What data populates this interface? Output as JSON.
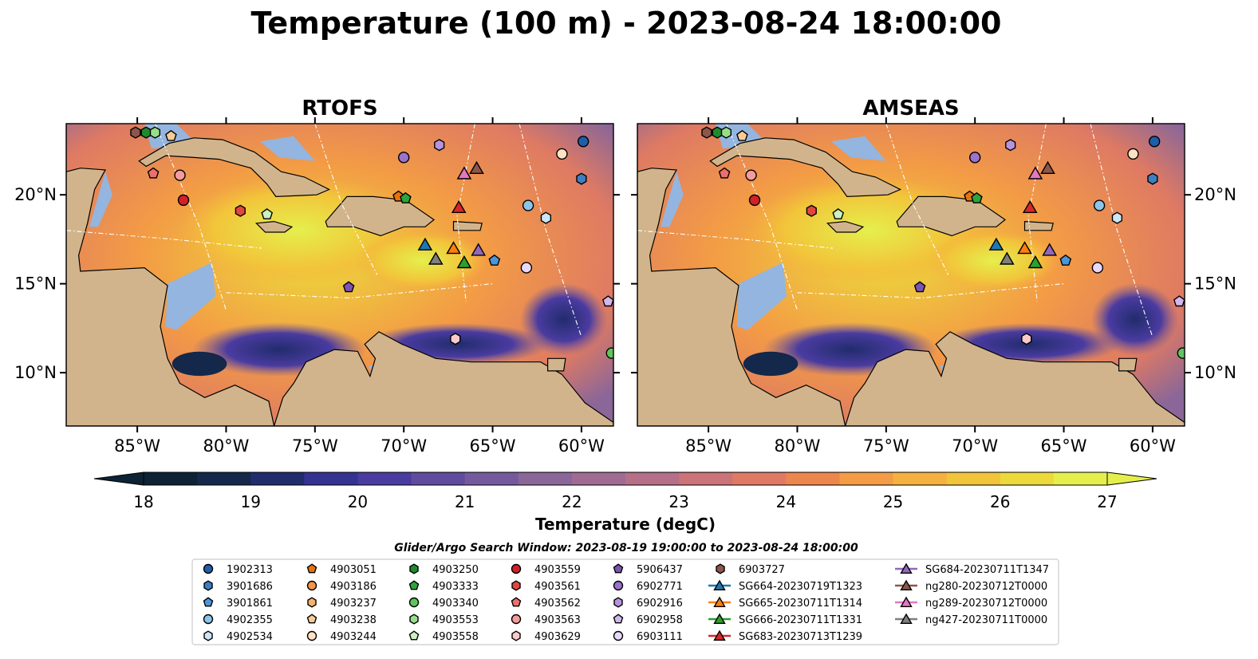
{
  "figure_title": "Temperature (100 m) - 2023-08-24 18:00:00",
  "search_window": "Glider/Argo Search Window: 2023-08-19 19:00:00 to 2023-08-24 18:00:00",
  "colors": {
    "land": "#d2b48c",
    "shallow_water": "#94b5df",
    "cmap": [
      "#0d2234",
      "#13284a",
      "#212c6c",
      "#343392",
      "#4a3ba0",
      "#5f4c9e",
      "#745a9d",
      "#8a6699",
      "#a06b93",
      "#b66f88",
      "#cc7279",
      "#de7a63",
      "#ec864d",
      "#f39c45",
      "#f6b03f",
      "#f2c43a",
      "#ecd93b",
      "#e5ef4c"
    ]
  },
  "legend_items": [
    {
      "label": "1902313",
      "marker": "circle",
      "color": "#1f5fa8"
    },
    {
      "label": "3901686",
      "marker": "hexagon",
      "color": "#3d7fc2"
    },
    {
      "label": "3901861",
      "marker": "pentagon",
      "color": "#4b96d8"
    },
    {
      "label": "4902355",
      "marker": "circle",
      "color": "#8cc4ea"
    },
    {
      "label": "4902534",
      "marker": "hexagon",
      "color": "#cde6f7"
    },
    {
      "label": "4903051",
      "marker": "pentagon",
      "color": "#e8730c"
    },
    {
      "label": "4903186",
      "marker": "circle",
      "color": "#f39744"
    },
    {
      "label": "4903237",
      "marker": "hexagon",
      "color": "#f6b26b"
    },
    {
      "label": "4903238",
      "marker": "pentagon",
      "color": "#f9cb96"
    },
    {
      "label": "4903244",
      "marker": "circle",
      "color": "#fde2c4"
    },
    {
      "label": "4903250",
      "marker": "hexagon",
      "color": "#1e8a2e"
    },
    {
      "label": "4903333",
      "marker": "pentagon",
      "color": "#2ea43c"
    },
    {
      "label": "4903340",
      "marker": "circle",
      "color": "#5ec65e"
    },
    {
      "label": "4903553",
      "marker": "hexagon",
      "color": "#97de8b"
    },
    {
      "label": "4903558",
      "marker": "pentagon",
      "color": "#cbf0c1"
    },
    {
      "label": "4903559",
      "marker": "circle",
      "color": "#d0202a"
    },
    {
      "label": "4903561",
      "marker": "hexagon",
      "color": "#e0473f"
    },
    {
      "label": "4903562",
      "marker": "pentagon",
      "color": "#ec6f6b"
    },
    {
      "label": "4903563",
      "marker": "circle",
      "color": "#f59b9b"
    },
    {
      "label": "4903629",
      "marker": "hexagon",
      "color": "#fbcaca"
    },
    {
      "label": "5906437",
      "marker": "pentagon",
      "color": "#7b53b3"
    },
    {
      "label": "6902771",
      "marker": "circle",
      "color": "#9b72cc"
    },
    {
      "label": "6902916",
      "marker": "hexagon",
      "color": "#b693de"
    },
    {
      "label": "6902958",
      "marker": "pentagon",
      "color": "#d2b6ee"
    },
    {
      "label": "6903111",
      "marker": "circle",
      "color": "#e8d8fa"
    },
    {
      "label": "6903727",
      "marker": "hexagon",
      "color": "#8c564b"
    },
    {
      "label": "SG664-20230719T1323",
      "marker": "triangle",
      "color": "#1f77b4"
    },
    {
      "label": "SG665-20230711T1314",
      "marker": "triangle",
      "color": "#ff7f0e"
    },
    {
      "label": "SG666-20230711T1331",
      "marker": "triangle",
      "color": "#2ca02c"
    },
    {
      "label": "SG683-20230713T1239",
      "marker": "triangle",
      "color": "#d62728"
    },
    {
      "label": "SG684-20230711T1347",
      "marker": "triangle",
      "color": "#9467bd"
    },
    {
      "label": "ng280-20230712T0000",
      "marker": "triangle",
      "color": "#8c564b"
    },
    {
      "label": "ng289-20230712T0000",
      "marker": "triangle",
      "color": "#e377c2"
    },
    {
      "label": "ng427-20230711T0000",
      "marker": "triangle",
      "color": "#7f7f7f"
    }
  ],
  "chart_data": {
    "type": "heatmap",
    "variable": "Temperature (degC)",
    "depth": "100 m",
    "time": "2023-08-24 18:00:00",
    "colorbar": {
      "label": "Temperature (degC)",
      "min": 18,
      "max": 27,
      "ticks": [
        18,
        19,
        20,
        21,
        22,
        23,
        24,
        25,
        26,
        27
      ],
      "extend": "both"
    },
    "xlim": [
      -89,
      -58.2
    ],
    "ylim": [
      7,
      24
    ],
    "x_ticks": [
      -85,
      -80,
      -75,
      -70,
      -65,
      -60
    ],
    "x_tick_labels": [
      "85°W",
      "80°W",
      "75°W",
      "70°W",
      "65°W",
      "60°W"
    ],
    "y_ticks": [
      10,
      15,
      20
    ],
    "y_tick_labels": [
      "10°N",
      "15°N",
      "20°N"
    ],
    "panels": [
      {
        "title": "RTOFS"
      },
      {
        "title": "AMSEAS"
      }
    ],
    "observations": [
      {
        "id": "6903727",
        "marker": "hexagon",
        "lon": -85.1,
        "lat": 23.5
      },
      {
        "id": "4903250",
        "marker": "hexagon",
        "lon": -84.5,
        "lat": 23.5
      },
      {
        "id": "4903553",
        "marker": "hexagon",
        "lon": -84.0,
        "lat": 23.5
      },
      {
        "id": "4903238",
        "marker": "pentagon",
        "lon": -83.1,
        "lat": 23.3
      },
      {
        "id": "4903562",
        "marker": "pentagon",
        "lon": -84.1,
        "lat": 21.2
      },
      {
        "id": "4903563",
        "marker": "circle",
        "lon": -82.6,
        "lat": 21.1
      },
      {
        "id": "4903559",
        "marker": "circle",
        "lon": -82.4,
        "lat": 19.7
      },
      {
        "id": "4903561",
        "marker": "hexagon",
        "lon": -79.2,
        "lat": 19.1
      },
      {
        "id": "4903558",
        "marker": "pentagon",
        "lon": -77.7,
        "lat": 18.9
      },
      {
        "id": "6902771",
        "marker": "circle",
        "lon": -70.0,
        "lat": 22.1
      },
      {
        "id": "6902916",
        "marker": "hexagon",
        "lon": -68.0,
        "lat": 22.8
      },
      {
        "id": "4903051",
        "marker": "pentagon",
        "lon": -70.3,
        "lat": 19.9
      },
      {
        "id": "4903333",
        "marker": "pentagon",
        "lon": -69.9,
        "lat": 19.8
      },
      {
        "id": "ng289-20230712T0000",
        "marker": "triangle",
        "lon": -66.6,
        "lat": 21.2
      },
      {
        "id": "ng280-20230712T0000",
        "marker": "triangle",
        "lon": -65.9,
        "lat": 21.5
      },
      {
        "id": "SG683-20230713T1239",
        "marker": "triangle",
        "lon": -66.9,
        "lat": 19.3
      },
      {
        "id": "SG664-20230719T1323",
        "marker": "triangle",
        "lon": -68.8,
        "lat": 17.2
      },
      {
        "id": "SG665-20230711T1314",
        "marker": "triangle",
        "lon": -67.2,
        "lat": 17.0
      },
      {
        "id": "SG684-20230711T1347",
        "marker": "triangle",
        "lon": -65.8,
        "lat": 16.9
      },
      {
        "id": "ng427-20230711T0000",
        "marker": "triangle",
        "lon": -68.2,
        "lat": 16.4
      },
      {
        "id": "SG666-20230711T1331",
        "marker": "triangle",
        "lon": -66.6,
        "lat": 16.2
      },
      {
        "id": "3901861",
        "marker": "pentagon",
        "lon": -64.9,
        "lat": 16.3
      },
      {
        "id": "4902355",
        "marker": "circle",
        "lon": -63.0,
        "lat": 19.4
      },
      {
        "id": "4902534",
        "marker": "hexagon",
        "lon": -62.0,
        "lat": 18.7
      },
      {
        "id": "4903244",
        "marker": "circle",
        "lon": -61.1,
        "lat": 22.3
      },
      {
        "id": "1902313",
        "marker": "circle",
        "lon": -59.9,
        "lat": 23.0
      },
      {
        "id": "3901686",
        "marker": "hexagon",
        "lon": -60.0,
        "lat": 20.9
      },
      {
        "id": "6903111",
        "marker": "circle",
        "lon": -63.1,
        "lat": 15.9
      },
      {
        "id": "6902958",
        "marker": "pentagon",
        "lon": -58.5,
        "lat": 14.0
      },
      {
        "id": "4903340",
        "marker": "circle",
        "lon": -58.3,
        "lat": 11.1
      },
      {
        "id": "4903629",
        "marker": "hexagon",
        "lon": -67.1,
        "lat": 11.9
      },
      {
        "id": "5906437",
        "marker": "pentagon",
        "lon": -73.1,
        "lat": 14.8
      }
    ]
  }
}
